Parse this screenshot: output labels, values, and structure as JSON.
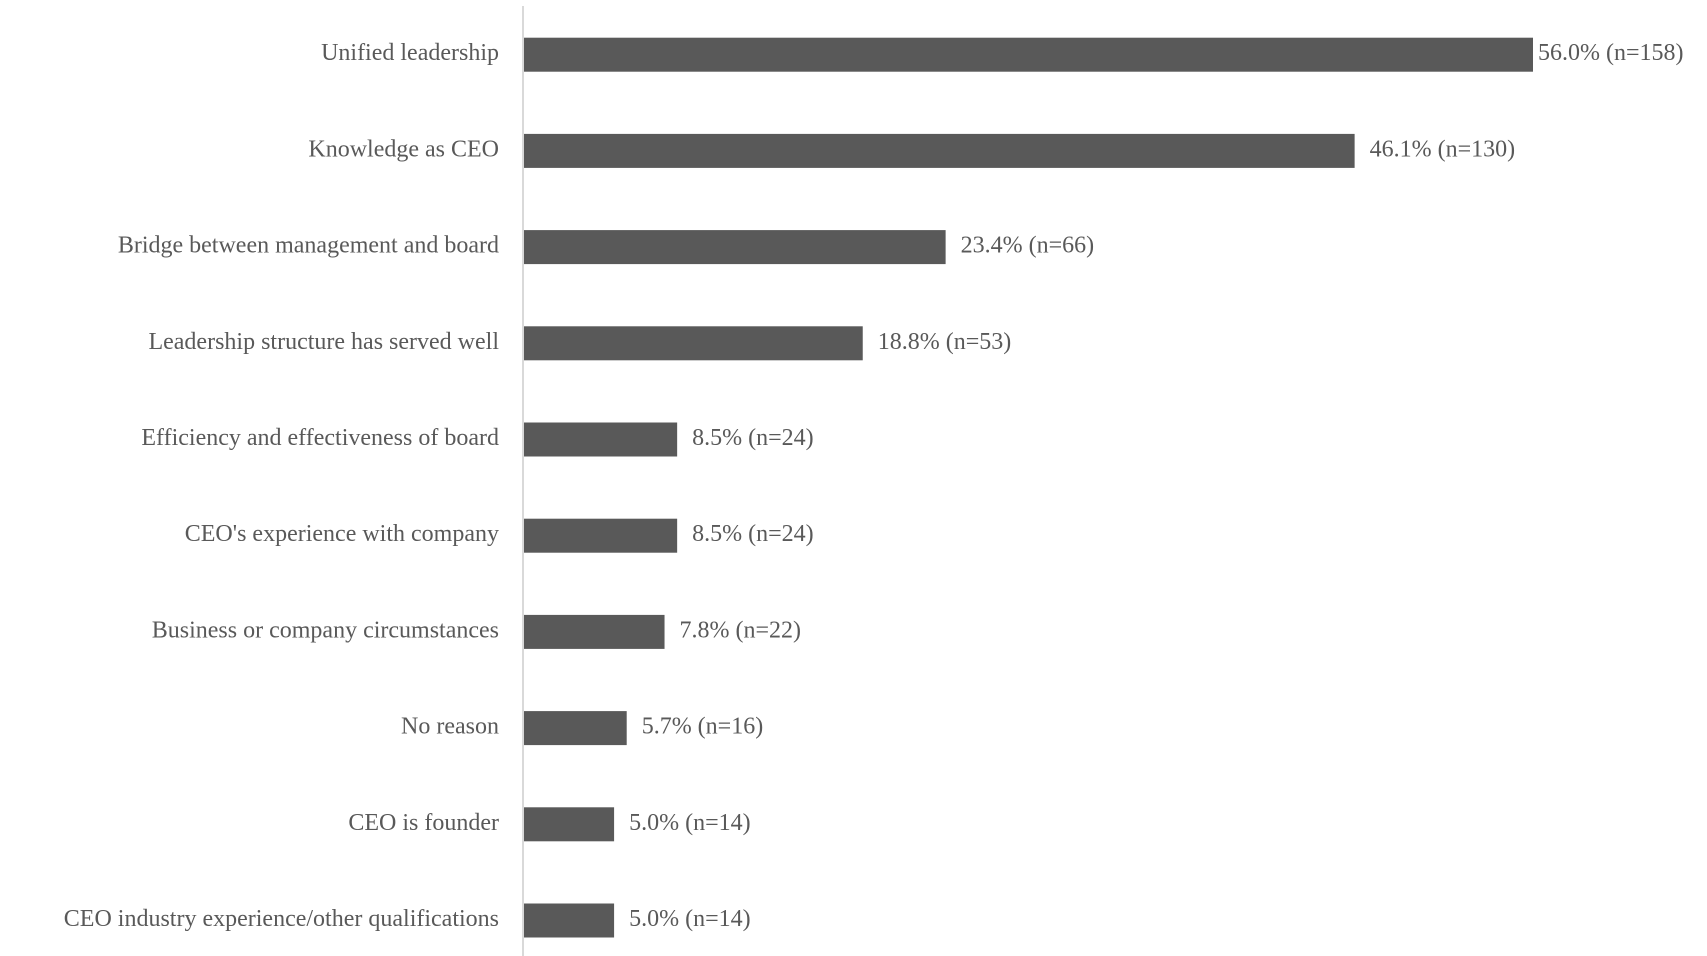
{
  "chart_data": {
    "type": "hbar",
    "categories": [
      "Unified leadership",
      "Knowledge as CEO",
      "Bridge between management and board",
      "Leadership structure has served well",
      "Efficiency and effectiveness of board",
      "CEO's experience with company",
      "Business or company circumstances",
      "No reason",
      "CEO is founder",
      "CEO industry experience/other qualifications"
    ],
    "values": [
      56.0,
      46.1,
      23.4,
      18.8,
      8.5,
      8.5,
      7.8,
      5.7,
      5.0,
      5.0
    ],
    "value_labels": [
      "56.0% (n=158)",
      "46.1% (n=130)",
      "23.4% (n=66)",
      "18.8% (n=53)",
      "8.5% (n=24)",
      "8.5% (n=24)",
      "7.8% (n=22)",
      "5.7% (n=16)",
      "5.0% (n=14)",
      "5.0% (n=14)"
    ],
    "color": "#595959"
  }
}
